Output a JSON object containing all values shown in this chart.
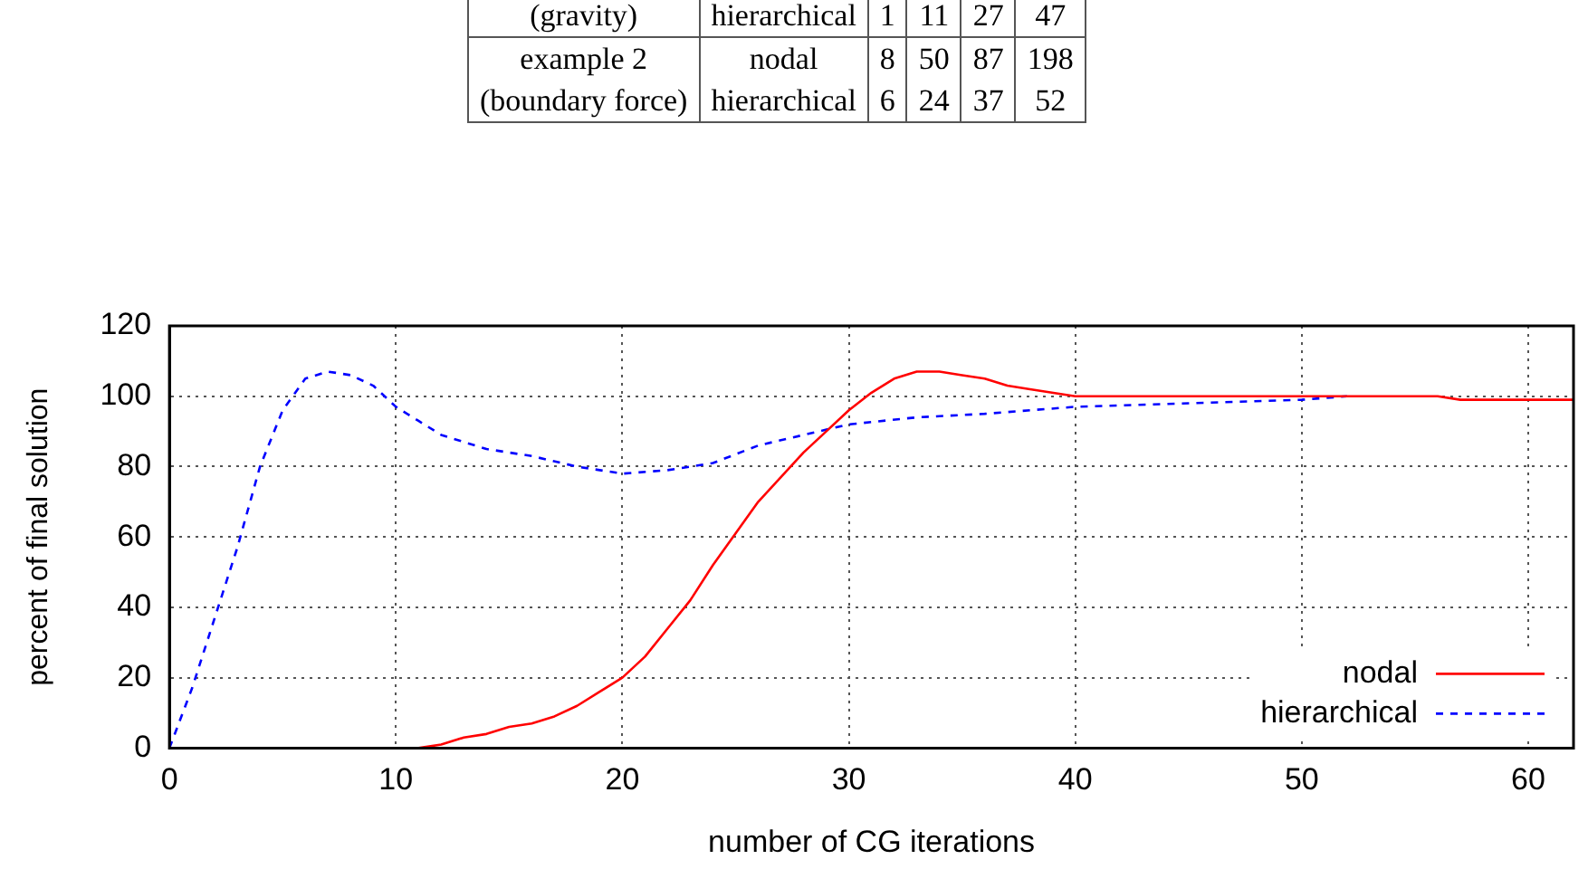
{
  "chart_data": [
    {
      "type": "other",
      "annotations": [
        "(gravity)",
        "hierarchical",
        "1",
        "11",
        "27",
        "47",
        "example 2",
        "nodal",
        "8",
        "50",
        "87",
        "198",
        "(boundary force)",
        "hierarchical",
        "6",
        "24",
        "37",
        "52"
      ]
    },
    {
      "type": "line",
      "xlabel": "number of CG iterations",
      "ylabel": "percent of final solution",
      "xlim": [
        0,
        62
      ],
      "xticks": [
        0,
        10,
        20,
        30,
        40,
        50,
        60
      ],
      "ylim": [
        0,
        120
      ],
      "yticks": [
        0,
        20,
        40,
        60,
        80,
        100,
        120
      ],
      "grid": true,
      "legend": "bottom right",
      "marker": "none",
      "series": [
        {
          "name": "nodal",
          "color": "#ff0000",
          "line_style": "solid",
          "x": [
            11,
            12,
            13,
            14,
            15,
            16,
            17,
            18,
            19,
            20,
            21,
            22,
            23,
            24,
            25,
            26,
            27,
            28,
            29,
            30,
            31,
            32,
            33,
            34,
            35,
            36,
            37,
            38,
            40,
            50,
            56,
            57,
            62
          ],
          "values": [
            0,
            1,
            3,
            4,
            6,
            7,
            9,
            12,
            16,
            20,
            26,
            34,
            42,
            52,
            61,
            70,
            77,
            84,
            90,
            96,
            101,
            105,
            107,
            107,
            106,
            105,
            103,
            102,
            100,
            100,
            100,
            99,
            99
          ]
        },
        {
          "name": "hierarchical",
          "color": "#0000ff",
          "line_style": "dashed",
          "x": [
            0,
            1,
            2,
            3,
            4,
            5,
            6,
            7,
            8,
            9,
            10,
            11,
            12,
            13,
            14,
            16,
            18,
            20,
            22,
            24,
            26,
            28,
            30,
            33,
            36,
            40,
            45,
            50,
            52
          ],
          "values": [
            0,
            17,
            37,
            57,
            80,
            96,
            105,
            107,
            106,
            103,
            97,
            93,
            89,
            87,
            85,
            83,
            80,
            78,
            79,
            81,
            86,
            89,
            92,
            94,
            95,
            97,
            98,
            99,
            100
          ]
        }
      ]
    }
  ]
}
